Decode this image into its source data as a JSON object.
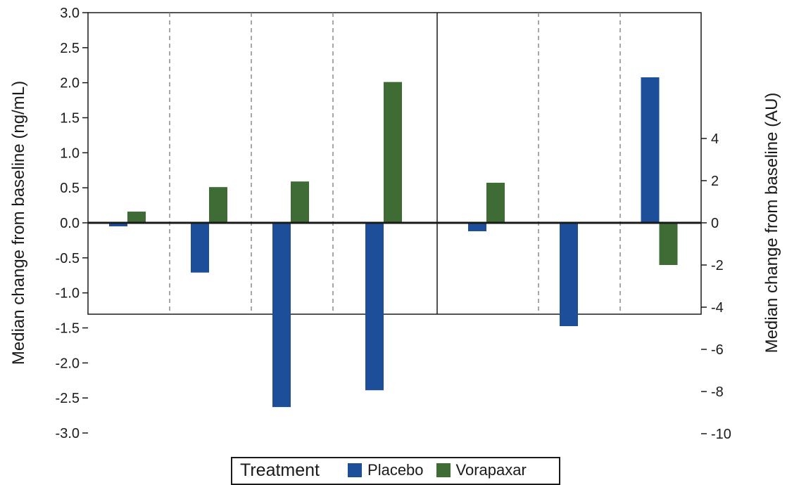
{
  "chart_data": {
    "type": "bar",
    "ylabel_left": "Median change from baseline (ng/mL)",
    "ylabel_right": "Median change from baseline (AU)",
    "ylim_left": [
      -3.0,
      3.0
    ],
    "yticks_left": [
      "3.0",
      "2.5",
      "2.0",
      "1.5",
      "1.0",
      "0.5",
      "0.0",
      "-0.5",
      "-1.0",
      "-1.5",
      "-2.0",
      "-2.5",
      "-3.0"
    ],
    "ylim_right": [
      -10,
      4
    ],
    "yticks_right": [
      "4",
      "2",
      "0",
      "-2",
      "-4",
      "-6",
      "-8",
      "-10"
    ],
    "colors": {
      "Placebo": "#1d4e9a",
      "Vorapaxar": "#3f6b35"
    },
    "panels": [
      {
        "axis": "left",
        "groups": [
          {
            "placebo": -0.05,
            "vorapaxar": 0.16
          },
          {
            "placebo": -0.71,
            "vorapaxar": 0.51
          },
          {
            "placebo": -2.63,
            "vorapaxar": 0.59
          },
          {
            "placebo": -2.39,
            "vorapaxar": 2.01
          }
        ]
      },
      {
        "axis": "right",
        "groups": [
          {
            "placebo": -0.4,
            "vorapaxar": 1.9
          },
          {
            "placebo": -4.9,
            "vorapaxar": 0.0
          },
          {
            "placebo": 6.9,
            "vorapaxar": -2.0
          }
        ]
      }
    ],
    "series": [
      {
        "name": "Placebo"
      },
      {
        "name": "Vorapaxar"
      }
    ],
    "legend": {
      "title": "Treatment",
      "position": "bottom"
    },
    "grid": false
  }
}
